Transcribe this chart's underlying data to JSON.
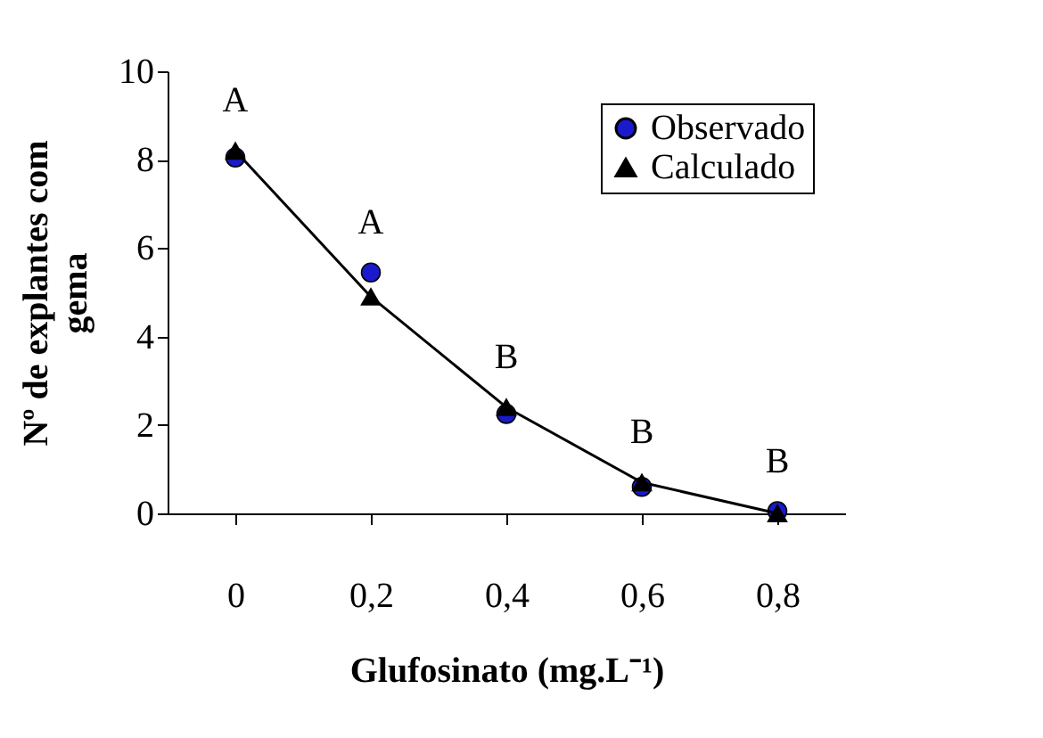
{
  "chart_data": {
    "type": "scatter",
    "xlabel": "Glufosinato (mg.L⁻¹)",
    "ylabel": "Nº de explantes com gema",
    "categories": [
      "0",
      "0,2",
      "0,4",
      "0,6",
      "0,8"
    ],
    "series": [
      {
        "name": "Observado",
        "marker": "circle",
        "color": "#1a1acc",
        "values": [
          8.05,
          5.45,
          2.25,
          0.6,
          0.05
        ]
      },
      {
        "name": "Calculado",
        "type": "line",
        "marker": "triangle",
        "color": "#000000",
        "values": [
          8.2,
          4.9,
          2.4,
          0.7,
          0.0
        ]
      }
    ],
    "ylim": [
      0,
      10
    ],
    "yticks": [
      0,
      2,
      4,
      6,
      8,
      10
    ],
    "grid": false,
    "legend": "top right",
    "annotations": [
      "A",
      "A",
      "B",
      "B",
      "B"
    ]
  }
}
